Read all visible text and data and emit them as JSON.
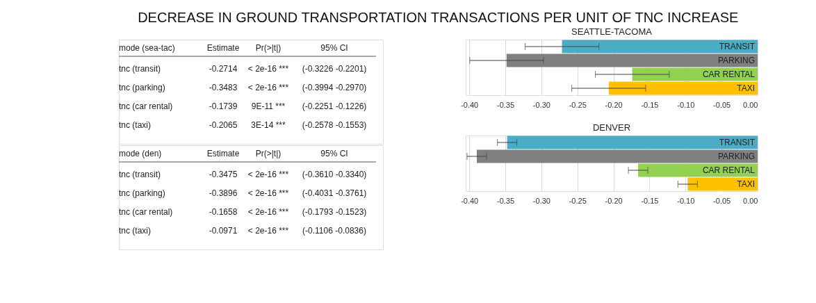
{
  "chart_data": [
    {
      "type": "other",
      "title": "DECREASE IN GROUND TRANSPORTATION TRANSACTIONS PER UNIT OF TNC INCREASE"
    },
    {
      "type": "other",
      "ylabel": "mode (sea-tac)",
      "categories": [
        "Estimate",
        "Pr(>|t|)",
        "95% CI"
      ],
      "y_categories": [
        "tnc (transit)",
        "tnc (parking)",
        "tnc (car rental)",
        "tnc (taxi)"
      ],
      "cell_labels": [
        [
          "-0.2714",
          "< 2e-16 ***",
          "(-0.3226 -0.2201)"
        ],
        [
          "-0.3483",
          "< 2e-16 ***",
          "(-0.3994 -0.2970)"
        ],
        [
          "-0.1739",
          "9E-11 ***",
          "(-0.2251 -0.1226)"
        ],
        [
          "-0.2065",
          "3E-14 ***",
          "(-0.2578 -0.1553)"
        ]
      ]
    },
    {
      "type": "bar",
      "orientation": "horizontal",
      "title": "SEATTLE-TACOMA",
      "categories": [
        "TRANSIT",
        "PARKING",
        "CAR RENTAL",
        "TAXI"
      ],
      "values": [
        -0.2714,
        -0.3483,
        -0.1739,
        -0.2065
      ],
      "colors": [
        "#4bacc6",
        "#7f7f7f",
        "#92d050",
        "#ffc000"
      ],
      "errors": [
        [
          -0.3226,
          -0.2201
        ],
        [
          -0.3994,
          -0.297
        ],
        [
          -0.2251,
          -0.1226
        ],
        [
          -0.2578,
          -0.1553
        ]
      ],
      "xlim": [
        -0.405,
        0
      ],
      "xticks": [
        {
          "value": -0.4,
          "label": "-0.40"
        },
        {
          "value": -0.35,
          "label": "-0.35"
        },
        {
          "value": -0.3,
          "label": "-0.30"
        },
        {
          "value": -0.25,
          "label": "-0.25"
        },
        {
          "value": -0.2,
          "label": "-0.20"
        },
        {
          "value": -0.15,
          "label": "-0.15"
        },
        {
          "value": -0.1,
          "label": "-0.10"
        },
        {
          "value": -0.05,
          "label": "-0.05"
        },
        {
          "value": 0,
          "label": "0.00"
        }
      ],
      "grid": "x"
    },
    {
      "type": "other",
      "ylabel": "mode (den)",
      "categories": [
        "Estimate",
        "Pr(>|t|)",
        "95% CI"
      ],
      "y_categories": [
        "tnc (transit)",
        "tnc (parking)",
        "tnc (car rental)",
        "tnc (taxi)"
      ],
      "cell_labels": [
        [
          "-0.3475",
          "< 2e-16 ***",
          "(-0.3610 -0.3340)"
        ],
        [
          "-0.3896",
          "< 2e-16 ***",
          "(-0.4031 -0.3761)"
        ],
        [
          "-0.1658",
          "< 2e-16 ***",
          "(-0.1793 -0.1523)"
        ],
        [
          "-0.0971",
          "< 2e-16 ***",
          "(-0.1106 -0.0836)"
        ]
      ]
    },
    {
      "type": "bar",
      "orientation": "horizontal",
      "title": "DENVER",
      "categories": [
        "TRANSIT",
        "PARKING",
        "CAR RENTAL",
        "TAXI"
      ],
      "values": [
        -0.3475,
        -0.3896,
        -0.1658,
        -0.0971
      ],
      "colors": [
        "#4bacc6",
        "#7f7f7f",
        "#92d050",
        "#ffc000"
      ],
      "errors": [
        [
          -0.361,
          -0.334
        ],
        [
          -0.4031,
          -0.3761
        ],
        [
          -0.1793,
          -0.1523
        ],
        [
          -0.1106,
          -0.0836
        ]
      ],
      "xlim": [
        -0.405,
        0
      ],
      "xticks": [
        {
          "value": -0.4,
          "label": "-0.40"
        },
        {
          "value": -0.35,
          "label": "-0.35"
        },
        {
          "value": -0.3,
          "label": "-0.30"
        },
        {
          "value": -0.25,
          "label": "-0.25"
        },
        {
          "value": -0.2,
          "label": "-0.20"
        },
        {
          "value": -0.15,
          "label": "-0.15"
        },
        {
          "value": -0.1,
          "label": "-0.10"
        },
        {
          "value": -0.05,
          "label": "-0.05"
        },
        {
          "value": 0,
          "label": "0.00"
        }
      ],
      "grid": "x"
    }
  ]
}
